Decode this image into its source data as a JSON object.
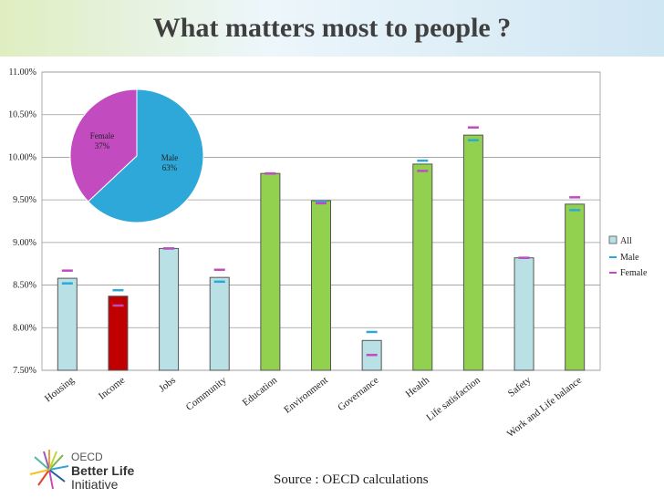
{
  "chart_data": [
    {
      "type": "bar",
      "title": "What matters most to people ?",
      "categories": [
        "Housing",
        "Income",
        "Jobs",
        "Community",
        "Education",
        "Environment",
        "Governance",
        "Health",
        "Life satisfaction",
        "Safety",
        "Work and Life balance"
      ],
      "series": [
        {
          "name": "All",
          "values": [
            8.58,
            8.37,
            8.93,
            8.59,
            9.81,
            9.49,
            7.85,
            9.92,
            10.26,
            8.82,
            9.45
          ]
        },
        {
          "name": "Male",
          "values": [
            8.52,
            8.44,
            8.93,
            8.54,
            9.81,
            9.48,
            7.95,
            9.96,
            10.2,
            8.82,
            9.38
          ]
        },
        {
          "name": "Female",
          "values": [
            8.67,
            8.26,
            8.93,
            8.68,
            9.81,
            9.46,
            7.68,
            9.84,
            10.35,
            8.82,
            9.53
          ]
        }
      ],
      "bar_colors": [
        "#b8e0e5",
        "#c00000",
        "#b8e0e5",
        "#b8e0e5",
        "#92d050",
        "#92d050",
        "#b8e0e5",
        "#92d050",
        "#92d050",
        "#b8e0e5",
        "#92d050"
      ],
      "male_color": "#2ea8d8",
      "female_color": "#c34bc0",
      "ylim": [
        7.5,
        11.0
      ],
      "yticks": [
        "7.50%",
        "8.00%",
        "8.50%",
        "9.00%",
        "9.50%",
        "10.00%",
        "10.50%",
        "11.00%"
      ],
      "grid": true,
      "legend_position": "right"
    },
    {
      "type": "pie",
      "categories": [
        "Female",
        "Male"
      ],
      "values": [
        37,
        63
      ],
      "labels": [
        "Female\n37%",
        "Male\n63%"
      ],
      "colors": [
        "#c34bc0",
        "#2ea8d8"
      ]
    }
  ],
  "source": "Source : OECD calculations",
  "logo": {
    "line1": "OECD",
    "line2": "Better Life",
    "line3": "Initiative"
  }
}
